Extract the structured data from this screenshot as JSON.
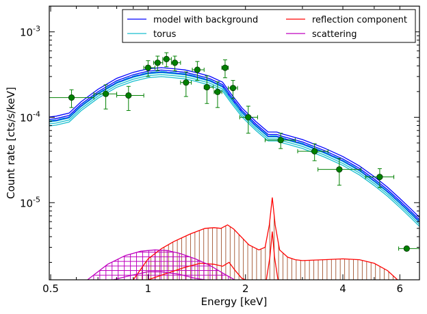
{
  "chart_data": {
    "type": "line",
    "xlabel": "Energy [keV]",
    "ylabel": "Count rate [cts/s/keV]",
    "x_scale": "log",
    "y_scale": "log",
    "xlim": [
      0.495,
      6.9
    ],
    "ylim": [
      1.25e-06,
      0.002
    ],
    "x_ticks": [
      {
        "value": 0.5,
        "label": "0.5"
      },
      {
        "value": 1,
        "label": "1"
      },
      {
        "value": 2,
        "label": "2"
      },
      {
        "value": 4,
        "label": "4"
      },
      {
        "value": 6,
        "label": "6"
      }
    ],
    "y_ticks": [
      {
        "value": 1e-05,
        "base": "10",
        "exp": "-5"
      },
      {
        "value": 0.0001,
        "base": "10",
        "exp": "-4"
      },
      {
        "value": 0.001,
        "base": "10",
        "exp": "-3"
      }
    ],
    "legend": {
      "placement": "top-right",
      "columns": 2,
      "entries": [
        {
          "label": "model with background",
          "color": "#0000ff"
        },
        {
          "label": "torus",
          "color": "#17becf"
        },
        {
          "label": "reflection component",
          "color": "#ff0000"
        },
        {
          "label": "scattering",
          "color": "#bf00bf"
        }
      ]
    },
    "data_points": {
      "color": "#008000",
      "points": [
        {
          "x": 0.58,
          "y": 0.00017,
          "xerr": [
            0.495,
            0.68
          ],
          "yerr": [
            0.00013,
            0.00021
          ]
        },
        {
          "x": 0.74,
          "y": 0.000188,
          "xerr": [
            0.68,
            0.8
          ],
          "yerr": [
            0.000125,
            0.00024
          ]
        },
        {
          "x": 0.87,
          "y": 0.00018,
          "xerr": [
            0.8,
            0.97
          ],
          "yerr": [
            0.00012,
            0.00023
          ]
        },
        {
          "x": 1.0,
          "y": 0.00038,
          "xerr": [
            0.97,
            1.05
          ],
          "yerr": [
            0.0003,
            0.00046
          ]
        },
        {
          "x": 1.07,
          "y": 0.000435,
          "xerr": [
            1.04,
            1.11
          ],
          "yerr": [
            0.00035,
            0.00052
          ]
        },
        {
          "x": 1.14,
          "y": 0.00048,
          "xerr": [
            1.11,
            1.18
          ],
          "yerr": [
            0.00039,
            0.00057
          ]
        },
        {
          "x": 1.21,
          "y": 0.000435,
          "xerr": [
            1.18,
            1.26
          ],
          "yerr": [
            0.00035,
            0.00052
          ]
        },
        {
          "x": 1.31,
          "y": 0.000255,
          "xerr": [
            1.26,
            1.36
          ],
          "yerr": [
            0.000175,
            0.00034
          ]
        },
        {
          "x": 1.42,
          "y": 0.00036,
          "xerr": [
            1.37,
            1.49
          ],
          "yerr": [
            0.00027,
            0.00045
          ]
        },
        {
          "x": 1.52,
          "y": 0.000225,
          "xerr": [
            1.49,
            1.59
          ],
          "yerr": [
            0.000145,
            0.000305
          ]
        },
        {
          "x": 1.64,
          "y": 0.000198,
          "xerr": [
            1.6,
            1.69
          ],
          "yerr": [
            0.00013,
            0.00026
          ]
        },
        {
          "x": 1.73,
          "y": 0.00038,
          "xerr": [
            1.69,
            1.77
          ],
          "yerr": [
            0.00029,
            0.00047
          ]
        },
        {
          "x": 1.83,
          "y": 0.00022,
          "xerr": [
            1.77,
            1.89
          ],
          "yerr": [
            0.000165,
            0.00027
          ]
        },
        {
          "x": 2.04,
          "y": 0.0001,
          "xerr": [
            1.92,
            2.18
          ],
          "yerr": [
            6.5e-05,
            0.000135
          ]
        },
        {
          "x": 2.57,
          "y": 5.4e-05,
          "xerr": [
            2.3,
            2.85
          ],
          "yerr": [
            4.3e-05,
            6.5e-05
          ]
        },
        {
          "x": 3.27,
          "y": 4e-05,
          "xerr": [
            2.9,
            3.6
          ],
          "yerr": [
            3.1e-05,
            4.9e-05
          ]
        },
        {
          "x": 3.9,
          "y": 2.45e-05,
          "xerr": [
            3.35,
            4.55
          ],
          "yerr": [
            1.6e-05,
            3.3e-05
          ]
        },
        {
          "x": 5.2,
          "y": 2e-05,
          "xerr": [
            4.7,
            5.75
          ],
          "yerr": [
            1.5e-05,
            2.5e-05
          ]
        },
        {
          "x": 6.3,
          "y": 2.9e-06,
          "xerr": [
            5.95,
            6.9
          ],
          "yerr": [
            2.9e-06,
            2.9e-06
          ]
        }
      ]
    },
    "model_curve": [
      [
        0.495,
        9e-05
      ],
      [
        0.52,
        9.2e-05
      ],
      [
        0.57,
        0.0001
      ],
      [
        0.62,
        0.000135
      ],
      [
        0.7,
        0.00019
      ],
      [
        0.8,
        0.000255
      ],
      [
        0.9,
        0.0003
      ],
      [
        1.0,
        0.00033
      ],
      [
        1.1,
        0.00034
      ],
      [
        1.2,
        0.00033
      ],
      [
        1.3,
        0.00032
      ],
      [
        1.4,
        0.0003
      ],
      [
        1.55,
        0.00027
      ],
      [
        1.7,
        0.00023
      ],
      [
        1.8,
        0.00017
      ],
      [
        1.95,
        0.000115
      ],
      [
        2.15,
        8e-05
      ],
      [
        2.35,
        6e-05
      ],
      [
        2.5,
        6e-05
      ],
      [
        2.6,
        5.7e-05
      ],
      [
        3.0,
        4.9e-05
      ],
      [
        3.5,
        3.9e-05
      ],
      [
        4.0,
        3.1e-05
      ],
      [
        4.5,
        2.4e-05
      ],
      [
        5.0,
        1.8e-05
      ],
      [
        5.5,
        1.35e-05
      ],
      [
        6.0,
        1e-05
      ],
      [
        6.5,
        7.5e-06
      ],
      [
        6.9,
        6e-06
      ]
    ],
    "model_band_factor": 1.12,
    "torus_band_factor_low": 0.88,
    "reflection_curve": [
      [
        0.9,
        1.25e-06
      ],
      [
        1.0,
        2.2e-06
      ],
      [
        1.1,
        2.9e-06
      ],
      [
        1.2,
        3.5e-06
      ],
      [
        1.35,
        4.3e-06
      ],
      [
        1.5,
        5e-06
      ],
      [
        1.6,
        5.1e-06
      ],
      [
        1.68,
        5e-06
      ],
      [
        1.76,
        5.5e-06
      ],
      [
        1.84,
        4.9e-06
      ],
      [
        1.95,
        3.9e-06
      ],
      [
        2.05,
        3.2e-06
      ],
      [
        2.2,
        2.8e-06
      ],
      [
        2.3,
        3e-06
      ],
      [
        2.37,
        5.5e-06
      ],
      [
        2.42,
        1.15e-05
      ],
      [
        2.47,
        5.5e-06
      ],
      [
        2.55,
        2.8e-06
      ],
      [
        2.7,
        2.3e-06
      ],
      [
        2.85,
        2.15e-06
      ],
      [
        3.0,
        2.1e-06
      ],
      [
        3.5,
        2.15e-06
      ],
      [
        4.0,
        2.2e-06
      ],
      [
        4.5,
        2.15e-06
      ],
      [
        5.0,
        1.95e-06
      ],
      [
        5.5,
        1.6e-06
      ],
      [
        5.9,
        1.25e-06
      ]
    ],
    "reflection_lower_curve": [
      [
        1.0,
        1.25e-06
      ],
      [
        1.15,
        1.5e-06
      ],
      [
        1.3,
        1.75e-06
      ],
      [
        1.45,
        1.95e-06
      ],
      [
        1.6,
        1.9e-06
      ],
      [
        1.7,
        1.8e-06
      ],
      [
        1.78,
        2e-06
      ],
      [
        1.86,
        1.6e-06
      ],
      [
        1.95,
        1.3e-06
      ],
      [
        2.0,
        1.25e-06
      ]
    ],
    "reflection_spike_lower": [
      [
        2.32,
        1.25e-06
      ],
      [
        2.38,
        2.3e-06
      ],
      [
        2.42,
        4.6e-06
      ],
      [
        2.46,
        2.3e-06
      ],
      [
        2.52,
        1.25e-06
      ]
    ],
    "scattering_curve": [
      [
        0.65,
        1.25e-06
      ],
      [
        0.75,
        1.9e-06
      ],
      [
        0.85,
        2.4e-06
      ],
      [
        0.95,
        2.7e-06
      ],
      [
        1.05,
        2.8e-06
      ],
      [
        1.15,
        2.75e-06
      ],
      [
        1.25,
        2.55e-06
      ],
      [
        1.4,
        2.2e-06
      ],
      [
        1.55,
        1.85e-06
      ],
      [
        1.7,
        1.5e-06
      ],
      [
        1.85,
        1.25e-06
      ]
    ],
    "scattering_lower_curve": [
      [
        0.78,
        1.25e-06
      ],
      [
        0.88,
        1.4e-06
      ],
      [
        1.0,
        1.55e-06
      ],
      [
        1.1,
        1.55e-06
      ],
      [
        1.25,
        1.45e-06
      ],
      [
        1.4,
        1.3e-06
      ],
      [
        1.5,
        1.25e-06
      ]
    ]
  }
}
